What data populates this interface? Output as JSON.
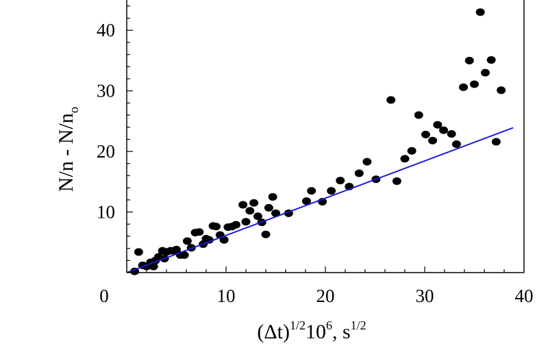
{
  "chart_data": {
    "type": "scatter",
    "xlabel": "(Δt)^1/2 10^6, s^1/2",
    "xlabel_parts": {
      "base": "(Δt)",
      "sup1": "1/2",
      "mid": "10",
      "sup2": "6",
      "unit": ", s",
      "sup3": "1/2"
    },
    "ylabel": "N/n - N/n_o",
    "ylabel_parts": {
      "main": "N/n - N/n",
      "sub": "o"
    },
    "xlim": [
      0,
      40
    ],
    "ylim": [
      0,
      45
    ],
    "x_ticks": [
      0,
      10,
      20,
      30,
      40
    ],
    "x_tick_labels": [
      "0",
      "10",
      "20",
      "30",
      "40"
    ],
    "y_ticks": [
      10,
      20,
      30,
      40
    ],
    "y_tick_labels": [
      "10",
      "20",
      "30",
      "40"
    ],
    "grid": false,
    "legend": "none",
    "colors": {
      "points": "#000000",
      "fit_line": "#1a1ad6",
      "axes": "#000000"
    },
    "series": [
      {
        "kind": "points",
        "x": [
          0.8,
          1.2,
          1.6,
          2.0,
          2.4,
          2.7,
          2.9,
          3.2,
          3.6,
          3.8,
          4.0,
          4.4,
          4.7,
          5.0,
          5.4,
          5.8,
          6.1,
          6.5,
          6.9,
          7.3,
          7.7,
          8.0,
          8.3,
          8.7,
          9.0,
          9.4,
          9.8,
          10.2,
          10.6,
          11.0,
          11.7,
          12.0,
          12.4,
          12.8,
          13.2,
          13.6,
          14.0,
          14.3,
          14.7,
          15.0,
          16.3,
          18.1,
          18.6,
          19.7,
          20.6,
          21.5,
          22.4,
          23.4,
          24.2,
          25.1,
          26.6,
          27.2,
          28.0,
          28.7,
          29.4,
          30.1,
          30.8,
          31.3,
          31.9,
          32.7,
          33.2,
          33.9,
          34.5,
          35.0,
          35.6,
          36.1,
          36.7,
          37.2,
          37.7
        ],
        "y": [
          0.2,
          3.4,
          1.2,
          1.0,
          1.7,
          1.0,
          2.0,
          2.6,
          3.6,
          2.3,
          3.4,
          3.6,
          3.6,
          3.8,
          2.9,
          2.9,
          5.2,
          4.1,
          6.6,
          6.7,
          4.7,
          5.6,
          5.4,
          7.7,
          7.6,
          6.2,
          5.4,
          7.5,
          7.6,
          7.9,
          11.2,
          8.4,
          10.2,
          11.5,
          9.3,
          8.3,
          6.3,
          10.7,
          12.5,
          9.8,
          9.8,
          11.8,
          13.5,
          11.7,
          13.5,
          15.2,
          14.2,
          16.4,
          18.3,
          15.4,
          28.5,
          15.1,
          18.8,
          20.1,
          26.0,
          22.8,
          21.8,
          24.4,
          23.5,
          22.9,
          21.2,
          30.6,
          35.0,
          31.1,
          43.0,
          33.0,
          35.1,
          21.6,
          30.1
        ]
      },
      {
        "kind": "line",
        "x": [
          0,
          38.9
        ],
        "y": [
          0,
          23.9
        ]
      }
    ]
  }
}
